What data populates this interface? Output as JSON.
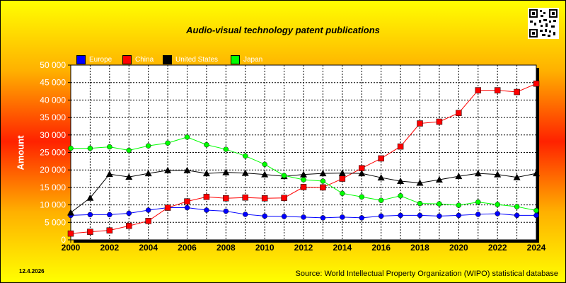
{
  "page": {
    "title": "Audio-visual technology patent publications",
    "date": "12.4.2026",
    "source": "Source: World Intellectual Property Organization (WIPO) statistical database"
  },
  "chart_data": {
    "type": "line",
    "title": "Audio-visual technology patent publications",
    "xlabel": "",
    "ylabel": "Amount",
    "x": [
      2000,
      2001,
      2002,
      2003,
      2004,
      2005,
      2006,
      2007,
      2008,
      2009,
      2010,
      2011,
      2012,
      2013,
      2014,
      2015,
      2016,
      2017,
      2018,
      2019,
      2020,
      2021,
      2022,
      2023,
      2024
    ],
    "xticks": [
      "2000",
      "2002",
      "2004",
      "2006",
      "2008",
      "2010",
      "2012",
      "2014",
      "2016",
      "2018",
      "2020",
      "2022",
      "2024"
    ],
    "yticks": [
      "0",
      "5 000",
      "10 000",
      "15 000",
      "20 000",
      "25 000",
      "30 000",
      "35 000",
      "40 000",
      "45 000",
      "50 000"
    ],
    "ylim": [
      0,
      50000
    ],
    "grid": true,
    "legend_position": "top-left",
    "series": [
      {
        "name": "Europe",
        "color": "#0000ff",
        "marker": "circle",
        "values": [
          7000,
          7200,
          7200,
          7600,
          8500,
          9200,
          9200,
          8500,
          8200,
          7300,
          6800,
          6700,
          6500,
          6300,
          6500,
          6300,
          6800,
          7000,
          7000,
          6800,
          7000,
          7300,
          7500,
          7000,
          7000
        ]
      },
      {
        "name": "China",
        "color": "#ff0000",
        "marker": "square",
        "values": [
          1800,
          2300,
          2700,
          4000,
          5400,
          9200,
          11000,
          12300,
          11900,
          12100,
          11900,
          12000,
          15100,
          15000,
          17500,
          20500,
          23300,
          26700,
          33300,
          33800,
          36300,
          42800,
          42800,
          42300,
          44700
        ]
      },
      {
        "name": "United States",
        "color": "#000000",
        "marker": "triangle",
        "values": [
          7800,
          12000,
          18800,
          18000,
          19000,
          19900,
          19900,
          19000,
          19300,
          19100,
          18700,
          18200,
          18700,
          19000,
          19100,
          19000,
          17800,
          16800,
          16300,
          17200,
          18200,
          19000,
          18700,
          17900,
          19000
        ]
      },
      {
        "name": "Japan",
        "color": "#00ff00",
        "marker": "circle",
        "values": [
          26200,
          26200,
          26600,
          25600,
          26900,
          27700,
          29400,
          27200,
          25900,
          24000,
          21600,
          18400,
          17200,
          16800,
          13300,
          12300,
          11300,
          12600,
          10400,
          10300,
          9900,
          10800,
          10100,
          9500,
          8400
        ]
      }
    ]
  }
}
